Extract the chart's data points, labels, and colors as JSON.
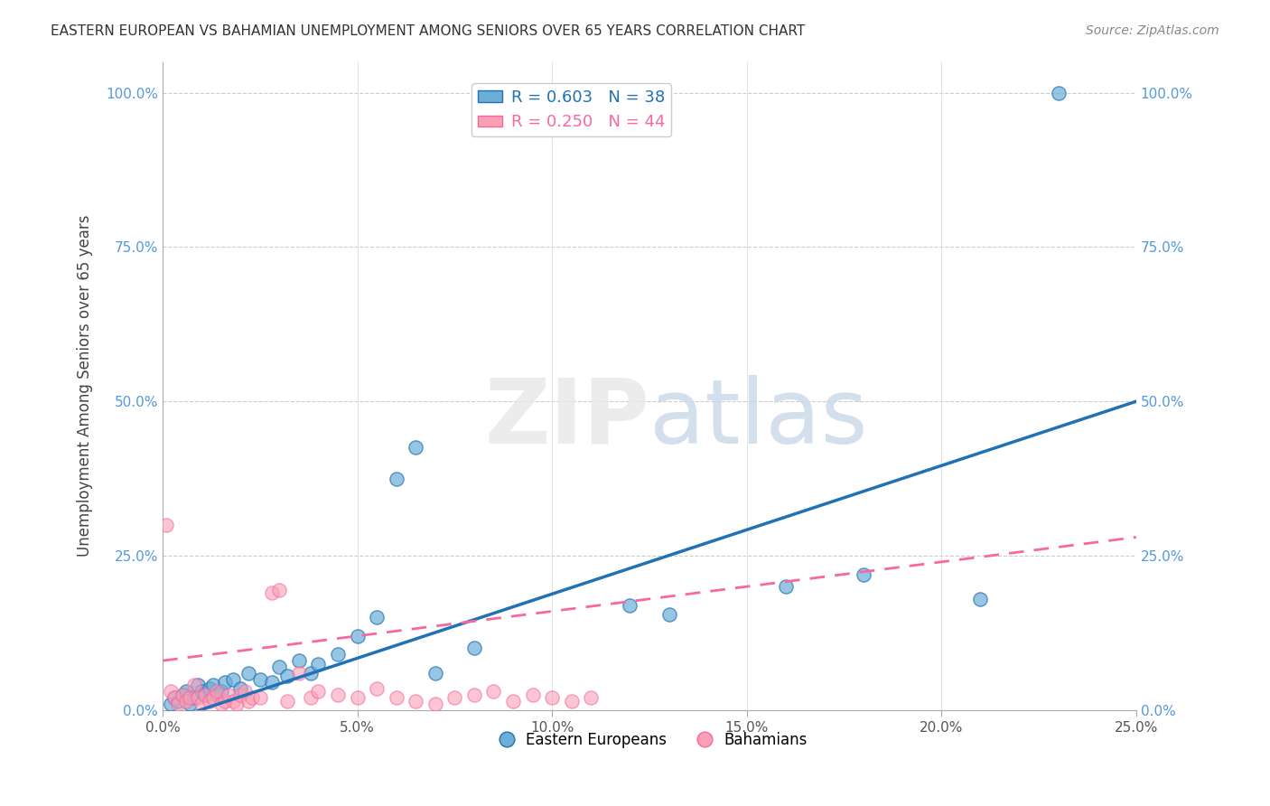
{
  "title": "EASTERN EUROPEAN VS BAHAMIAN UNEMPLOYMENT AMONG SENIORS OVER 65 YEARS CORRELATION CHART",
  "source": "Source: ZipAtlas.com",
  "xlabel": "",
  "ylabel": "Unemployment Among Seniors over 65 years",
  "xlim": [
    0.0,
    0.25
  ],
  "ylim": [
    0.0,
    1.05
  ],
  "xticks": [
    0.0,
    0.05,
    0.1,
    0.15,
    0.2,
    0.25
  ],
  "yticks": [
    0.0,
    0.25,
    0.5,
    0.75,
    1.0
  ],
  "xticklabels": [
    "0.0%",
    "5.0%",
    "10.0%",
    "15.0%",
    "20.0%",
    "25.0%"
  ],
  "yticklabels": [
    "0.0%",
    "25.0%",
    "50.0%",
    "75.0%",
    "100.0%"
  ],
  "blue_R": 0.603,
  "blue_N": 38,
  "pink_R": 0.25,
  "pink_N": 44,
  "blue_color": "#6baed6",
  "pink_color": "#fa9fb5",
  "blue_line_color": "#2171b5",
  "pink_line_color": "#f768a1",
  "watermark": "ZIPatlas",
  "blue_scatter_x": [
    0.002,
    0.003,
    0.004,
    0.005,
    0.006,
    0.007,
    0.008,
    0.009,
    0.01,
    0.011,
    0.012,
    0.013,
    0.014,
    0.015,
    0.016,
    0.018,
    0.02,
    0.022,
    0.025,
    0.028,
    0.03,
    0.032,
    0.035,
    0.038,
    0.04,
    0.045,
    0.05,
    0.055,
    0.06,
    0.065,
    0.07,
    0.08,
    0.12,
    0.13,
    0.16,
    0.18,
    0.21,
    0.23
  ],
  "blue_scatter_y": [
    0.01,
    0.02,
    0.015,
    0.025,
    0.03,
    0.01,
    0.02,
    0.04,
    0.03,
    0.025,
    0.035,
    0.04,
    0.025,
    0.03,
    0.045,
    0.05,
    0.035,
    0.06,
    0.05,
    0.045,
    0.07,
    0.055,
    0.08,
    0.06,
    0.075,
    0.09,
    0.12,
    0.15,
    0.375,
    0.425,
    0.06,
    0.1,
    0.17,
    0.155,
    0.2,
    0.22,
    0.18,
    1.0
  ],
  "pink_scatter_x": [
    0.001,
    0.002,
    0.003,
    0.004,
    0.005,
    0.006,
    0.007,
    0.008,
    0.009,
    0.01,
    0.011,
    0.012,
    0.013,
    0.014,
    0.015,
    0.016,
    0.017,
    0.018,
    0.019,
    0.02,
    0.021,
    0.022,
    0.023,
    0.025,
    0.028,
    0.03,
    0.032,
    0.035,
    0.038,
    0.04,
    0.045,
    0.05,
    0.055,
    0.06,
    0.065,
    0.07,
    0.075,
    0.08,
    0.085,
    0.09,
    0.095,
    0.1,
    0.105,
    0.11
  ],
  "pink_scatter_y": [
    0.3,
    0.03,
    0.02,
    0.01,
    0.025,
    0.015,
    0.02,
    0.04,
    0.02,
    0.01,
    0.025,
    0.015,
    0.02,
    0.03,
    0.01,
    0.015,
    0.025,
    0.015,
    0.01,
    0.025,
    0.03,
    0.015,
    0.02,
    0.02,
    0.19,
    0.195,
    0.015,
    0.06,
    0.02,
    0.03,
    0.025,
    0.02,
    0.035,
    0.02,
    0.015,
    0.01,
    0.02,
    0.025,
    0.03,
    0.015,
    0.025,
    0.02,
    0.015,
    0.02
  ]
}
